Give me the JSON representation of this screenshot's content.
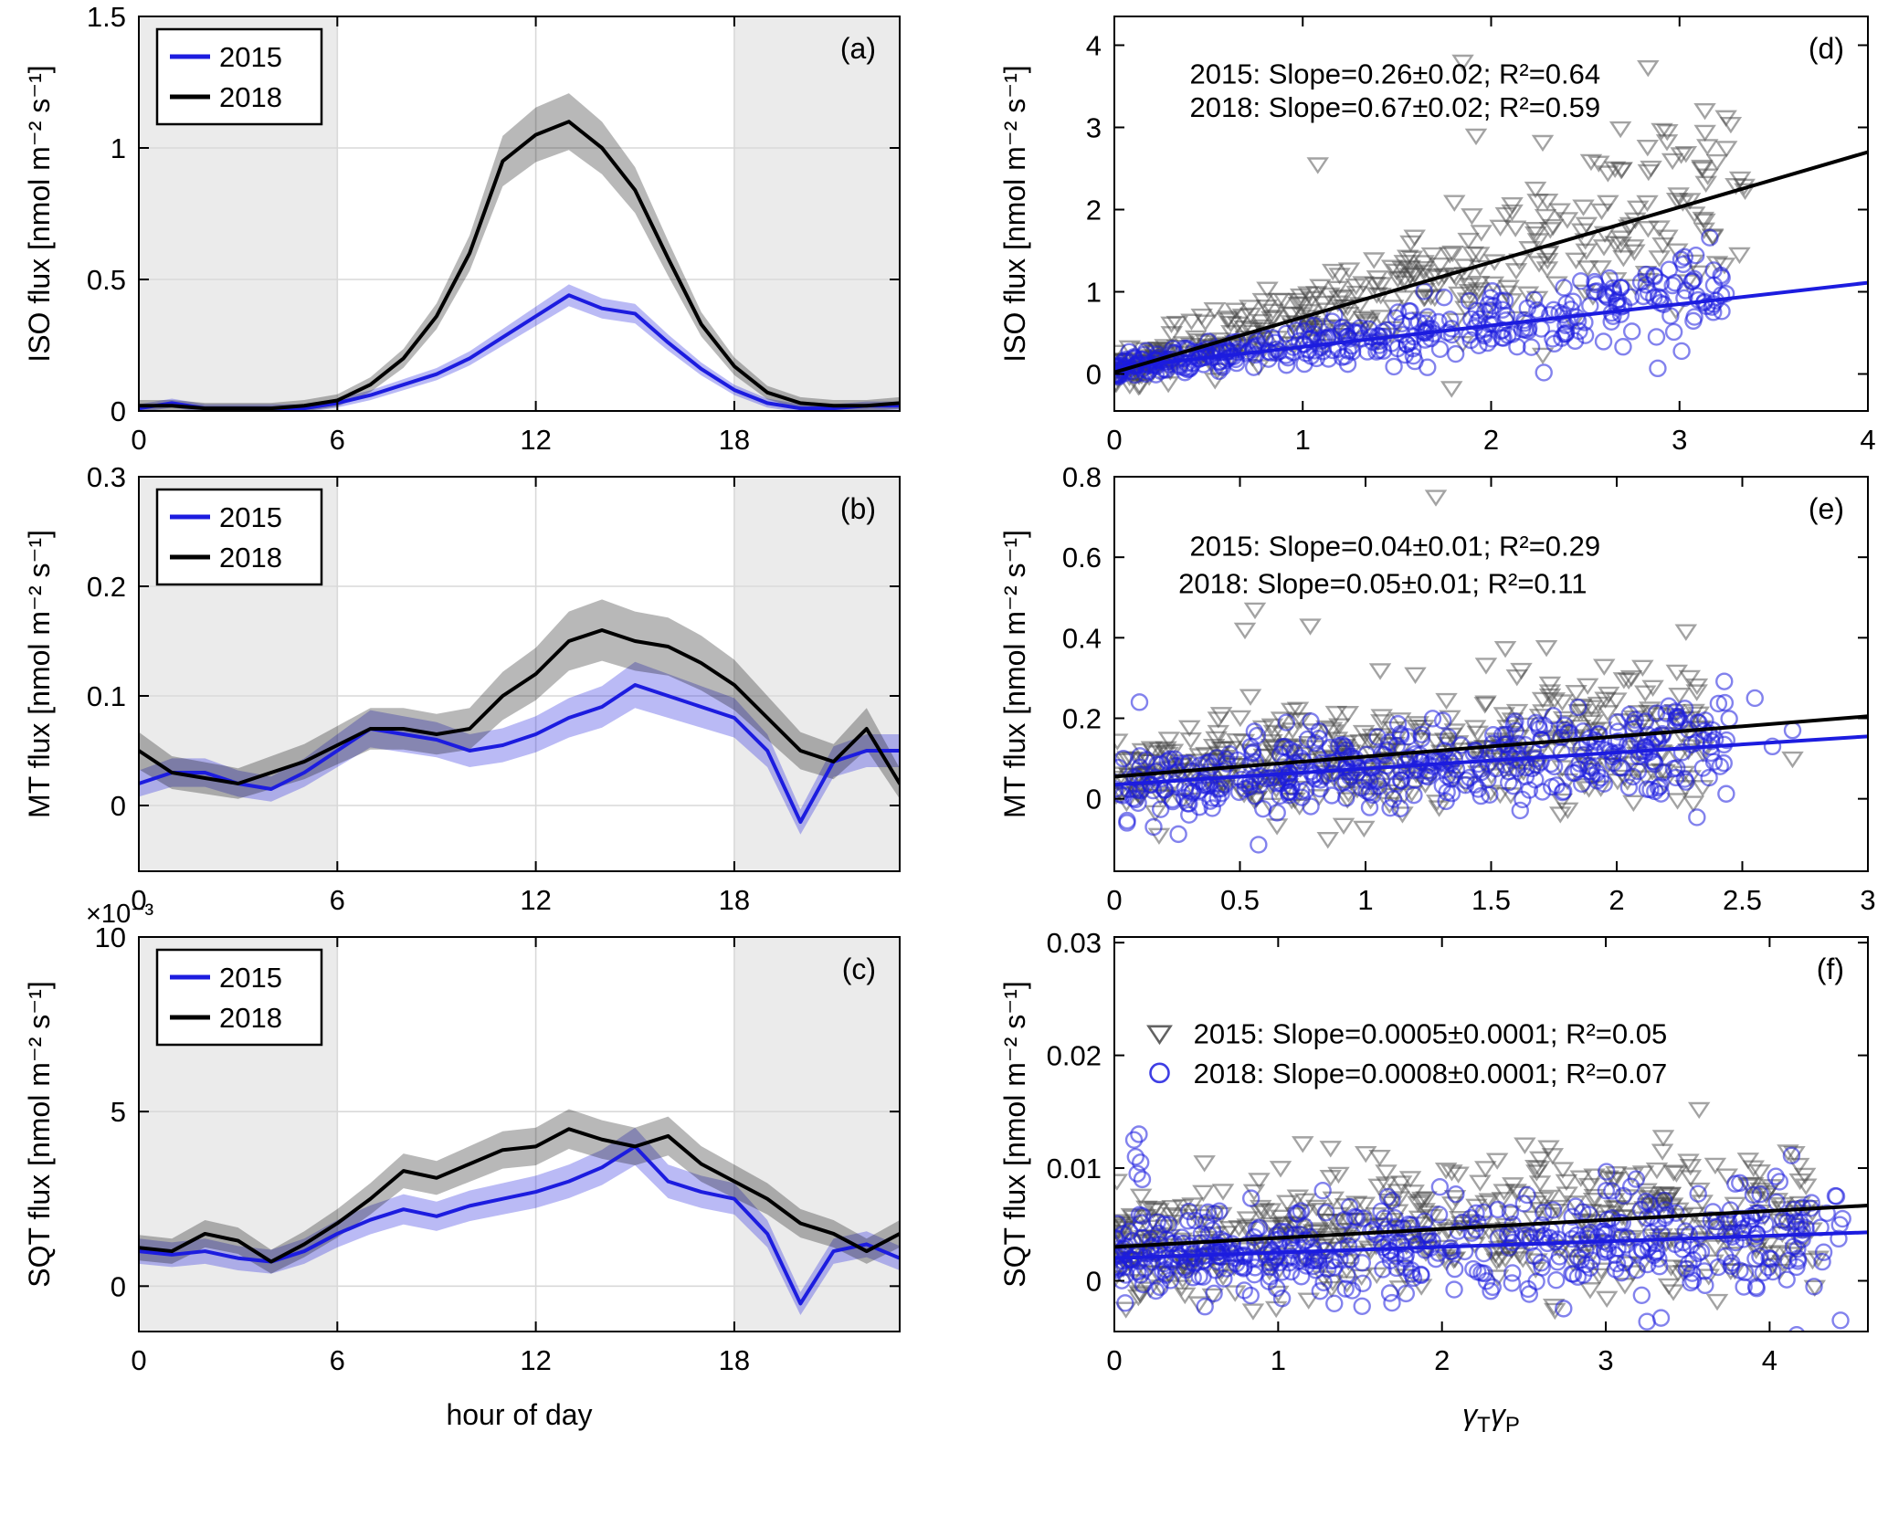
{
  "style": {
    "blue": "#1c1cdf",
    "black": "#000000",
    "gray": "#474747",
    "night_fill": "#ebebeb",
    "grid": "#d9d9d9",
    "background": "#ffffff"
  },
  "chart_data": [
    {
      "id": "a",
      "type": "line",
      "panel_label": "(a)",
      "grid": true,
      "ylabel": "ISO flux [nmol m⁻² s⁻¹]",
      "xlabel": "",
      "xlim": [
        0,
        23
      ],
      "ylim": [
        0,
        1.5
      ],
      "xticks": [
        0,
        6,
        12,
        18
      ],
      "yticks": [
        0,
        0.5,
        1,
        1.5
      ],
      "night_shading": [
        [
          0,
          6
        ],
        [
          18,
          23
        ]
      ],
      "legend": {
        "items": [
          {
            "label": "2015",
            "color_key": "blue"
          },
          {
            "label": "2018",
            "color_key": "black"
          }
        ]
      },
      "hours": [
        0,
        1,
        2,
        3,
        4,
        5,
        6,
        7,
        8,
        9,
        10,
        11,
        12,
        13,
        14,
        15,
        16,
        17,
        18,
        19,
        20,
        21,
        22,
        23
      ],
      "series": [
        {
          "name": "2015",
          "color_key": "blue",
          "band_base": 0.015,
          "band_frac": 0.06,
          "values": [
            0.01,
            0.03,
            0.01,
            0.01,
            0.01,
            0.01,
            0.03,
            0.06,
            0.1,
            0.14,
            0.2,
            0.28,
            0.36,
            0.44,
            0.39,
            0.37,
            0.26,
            0.16,
            0.08,
            0.03,
            0.01,
            0.01,
            0.02,
            0.02
          ]
        },
        {
          "name": "2018",
          "color_key": "black",
          "band_base": 0.02,
          "band_frac": 0.08,
          "values": [
            0.02,
            0.02,
            0.01,
            0.01,
            0.01,
            0.02,
            0.04,
            0.1,
            0.2,
            0.36,
            0.6,
            0.95,
            1.05,
            1.1,
            1.0,
            0.84,
            0.58,
            0.33,
            0.17,
            0.07,
            0.03,
            0.02,
            0.02,
            0.03
          ]
        }
      ]
    },
    {
      "id": "b",
      "type": "line",
      "panel_label": "(b)",
      "grid": true,
      "ylabel": "MT flux [nmol m⁻² s⁻¹]",
      "xlabel": "",
      "xlim": [
        0,
        23
      ],
      "ylim": [
        -0.06,
        0.3
      ],
      "xticks": [
        0,
        6,
        12,
        18
      ],
      "yticks": [
        0,
        0.1,
        0.2,
        0.3
      ],
      "night_shading": [
        [
          0,
          6
        ],
        [
          18,
          23
        ]
      ],
      "legend": {
        "items": [
          {
            "label": "2015",
            "color_key": "blue"
          },
          {
            "label": "2018",
            "color_key": "black"
          }
        ]
      },
      "hours": [
        0,
        1,
        2,
        3,
        4,
        5,
        6,
        7,
        8,
        9,
        10,
        11,
        12,
        13,
        14,
        15,
        16,
        17,
        18,
        19,
        20,
        21,
        22,
        23
      ],
      "series": [
        {
          "name": "2015",
          "color_key": "blue",
          "band_base": 0.01,
          "band_frac": 0.1,
          "values": [
            0.02,
            0.03,
            0.03,
            0.02,
            0.015,
            0.03,
            0.05,
            0.07,
            0.065,
            0.06,
            0.05,
            0.055,
            0.065,
            0.08,
            0.09,
            0.11,
            0.1,
            0.09,
            0.08,
            0.05,
            -0.015,
            0.04,
            0.05,
            0.05
          ]
        },
        {
          "name": "2018",
          "color_key": "black",
          "band_base": 0.012,
          "band_frac": 0.1,
          "values": [
            0.05,
            0.03,
            0.025,
            0.02,
            0.03,
            0.04,
            0.055,
            0.07,
            0.07,
            0.065,
            0.07,
            0.1,
            0.12,
            0.15,
            0.16,
            0.15,
            0.145,
            0.13,
            0.11,
            0.08,
            0.05,
            0.04,
            0.07,
            0.02
          ]
        }
      ]
    },
    {
      "id": "c",
      "type": "line",
      "panel_label": "(c)",
      "grid": true,
      "ylabel": "SQT flux [nmol m⁻² s⁻¹]",
      "xlabel": "hour of day",
      "y_multiplier": "×10⁻³",
      "xlim": [
        0,
        23
      ],
      "ylim": [
        -1.3,
        10
      ],
      "xticks": [
        0,
        6,
        12,
        18
      ],
      "yticks": [
        0,
        5,
        10
      ],
      "night_shading": [
        [
          0,
          6
        ],
        [
          18,
          23
        ]
      ],
      "legend": {
        "items": [
          {
            "label": "2015",
            "color_key": "blue"
          },
          {
            "label": "2018",
            "color_key": "black"
          }
        ]
      },
      "hours": [
        0,
        1,
        2,
        3,
        4,
        5,
        6,
        7,
        8,
        9,
        10,
        11,
        12,
        13,
        14,
        15,
        16,
        17,
        18,
        19,
        20,
        21,
        22,
        23
      ],
      "series": [
        {
          "name": "2015",
          "color_key": "blue",
          "band_base": 0.3,
          "band_frac": 0.06,
          "values": [
            1.0,
            0.9,
            1.0,
            0.8,
            0.7,
            1.0,
            1.5,
            1.9,
            2.2,
            2.0,
            2.3,
            2.5,
            2.7,
            3.0,
            3.4,
            4.0,
            3.0,
            2.7,
            2.5,
            1.5,
            -0.5,
            1.0,
            1.2,
            0.8
          ]
        },
        {
          "name": "2018",
          "color_key": "black",
          "band_base": 0.3,
          "band_frac": 0.06,
          "values": [
            1.1,
            1.0,
            1.5,
            1.3,
            0.7,
            1.2,
            1.8,
            2.5,
            3.3,
            3.1,
            3.5,
            3.9,
            4.0,
            4.5,
            4.2,
            4.0,
            4.3,
            3.5,
            3.0,
            2.5,
            1.8,
            1.5,
            1.0,
            1.5
          ]
        }
      ]
    },
    {
      "id": "d",
      "type": "scatter",
      "panel_label": "(d)",
      "grid": false,
      "ylabel": "ISO flux [nmol m⁻² s⁻¹]",
      "xlabel": "",
      "xlim": [
        0,
        4
      ],
      "ylim": [
        -0.45,
        4.35
      ],
      "xticks": [
        0,
        1,
        2,
        3,
        4
      ],
      "yticks": [
        0,
        1,
        2,
        3,
        4
      ],
      "annotations": [
        {
          "text": "2015: Slope=0.26±0.02; R²=0.64",
          "color_key": "blue",
          "fx": 0.1,
          "fy": 0.17
        },
        {
          "text": "2018: Slope=0.67±0.02; R²=0.59",
          "color_key": "black",
          "fx": 0.1,
          "fy": 0.255
        }
      ],
      "series": [
        {
          "name": "2018",
          "marker": "triangle",
          "color_key": "gray",
          "line_color_key": "black",
          "slope": 0.67,
          "intercept": 0.02,
          "r2": 0.59,
          "n": 380,
          "seed": 11,
          "x_max": 3.35,
          "x_pow": 1.35,
          "noise": [
            0.1,
            0.15
          ],
          "line_x": [
            0,
            4
          ],
          "extra_points": [
            [
              1.85,
              3.8
            ],
            [
              1.08,
              2.55
            ],
            [
              1.92,
              2.9
            ],
            [
              2.62,
              2.45
            ],
            [
              3.12,
              2.5
            ],
            [
              3.2,
              1.35
            ],
            [
              2.98,
              0.78
            ]
          ]
        },
        {
          "name": "2015",
          "marker": "circle",
          "color_key": "blue",
          "line_color_key": "blue",
          "slope": 0.26,
          "intercept": 0.07,
          "r2": 0.64,
          "n": 380,
          "seed": 23,
          "x_max": 3.25,
          "x_pow": 1.25,
          "noise": [
            0.06,
            0.07
          ],
          "line_x": [
            0,
            4
          ],
          "extra_points": [
            [
              2.55,
              1.0
            ],
            [
              2.62,
              0.93
            ],
            [
              2.5,
              0.47
            ],
            [
              3.1,
              0.9
            ],
            [
              3.18,
              0.85
            ]
          ]
        }
      ]
    },
    {
      "id": "e",
      "type": "scatter",
      "panel_label": "(e)",
      "grid": false,
      "ylabel": "MT flux [nmol m⁻² s⁻¹]",
      "xlabel": "",
      "xlim": [
        0,
        3
      ],
      "ylim": [
        -0.18,
        0.8
      ],
      "xticks": [
        0,
        0.5,
        1,
        1.5,
        2,
        2.5,
        3
      ],
      "yticks": [
        0,
        0.2,
        0.4,
        0.6,
        0.8
      ],
      "annotations": [
        {
          "text": "2015: Slope=0.04±0.01; R²=0.29",
          "color_key": "blue",
          "fx": 0.1,
          "fy": 0.2
        },
        {
          "text": "2018: Slope=0.05±0.01; R²=0.11",
          "color_key": "black",
          "fx": 0.085,
          "fy": 0.295
        }
      ],
      "series": [
        {
          "name": "2018",
          "marker": "triangle",
          "color_key": "gray",
          "line_color_key": "black",
          "slope": 0.05,
          "intercept": 0.055,
          "r2": 0.11,
          "n": 430,
          "seed": 31,
          "x_max": 2.35,
          "x_pow": 1.05,
          "noise": [
            0.05,
            0.022
          ],
          "line_x": [
            0,
            3
          ],
          "extra_points": [
            [
              1.28,
              0.75
            ],
            [
              0.56,
              0.47
            ],
            [
              0.78,
              0.43
            ],
            [
              0.52,
              0.42
            ],
            [
              0.85,
              -0.1
            ],
            [
              1.95,
              0.33
            ],
            [
              1.62,
              0.32
            ],
            [
              2.7,
              0.1
            ]
          ]
        },
        {
          "name": "2015",
          "marker": "circle",
          "color_key": "blue",
          "line_color_key": "blue",
          "slope": 0.04,
          "intercept": 0.035,
          "r2": 0.29,
          "n": 430,
          "seed": 41,
          "x_max": 2.45,
          "x_pow": 1.0,
          "noise": [
            0.04,
            0.012
          ],
          "line_x": [
            0,
            3
          ],
          "extra_points": [
            [
              2.55,
              0.25
            ],
            [
              2.7,
              0.17
            ],
            [
              0.1,
              0.24
            ],
            [
              2.62,
              0.13
            ]
          ]
        }
      ]
    },
    {
      "id": "f",
      "type": "scatter",
      "panel_label": "(f)",
      "grid": false,
      "ylabel": "SQT flux [nmol m⁻² s⁻¹]",
      "xlabel_rich": [
        {
          "t": "γ",
          "italic": true,
          "dy": 0
        },
        {
          "t": "T",
          "small": true,
          "dy": 8
        },
        {
          "t": "γ",
          "italic": true,
          "dy": -8
        },
        {
          "t": "P",
          "small": true,
          "dy": 8
        }
      ],
      "xlim": [
        0,
        4.6
      ],
      "ylim": [
        -0.0045,
        0.0305
      ],
      "xticks": [
        0,
        1,
        2,
        3,
        4
      ],
      "yticks": [
        0,
        0.01,
        0.02,
        0.03
      ],
      "annotations": [
        {
          "text": "2015: Slope=0.0005±0.0001; R²=0.05",
          "color_key": "blue",
          "fx": 0.105,
          "fy": 0.27,
          "marker": "triangle",
          "marker_color_key": "gray",
          "marker_fx": 0.06
        },
        {
          "text": "2018: Slope=0.0008±0.0001; R²=0.07",
          "color_key": "black",
          "fx": 0.105,
          "fy": 0.37,
          "marker": "circle",
          "marker_color_key": "blue",
          "marker_fx": 0.06
        }
      ],
      "series": [
        {
          "name": "2018",
          "marker": "triangle",
          "color_key": "gray",
          "line_color_key": "black",
          "slope": 0.0008,
          "intercept": 0.003,
          "r2": 0.07,
          "n": 500,
          "seed": 51,
          "x_max": 4.3,
          "x_pow": 1.2,
          "noise": [
            0.0022,
            0.0003
          ],
          "line_x": [
            0,
            4.6
          ],
          "extra_points": [
            [
              1.15,
              0.0122
            ],
            [
              1.32,
              0.0118
            ],
            [
              0.55,
              0.0105
            ],
            [
              1.62,
              0.011
            ],
            [
              2.1,
              0.0095
            ],
            [
              2.9,
              0.0085
            ]
          ]
        },
        {
          "name": "2015",
          "marker": "circle",
          "color_key": "blue",
          "line_color_key": "blue",
          "slope": 0.0005,
          "intercept": 0.002,
          "r2": 0.05,
          "n": 500,
          "seed": 61,
          "x_max": 4.45,
          "x_pow": 1.25,
          "noise": [
            0.0016,
            0.0003
          ],
          "line_x": [
            0,
            4.6
          ],
          "extra_points": [
            [
              0.12,
              0.0125
            ],
            [
              0.15,
              0.013
            ],
            [
              0.13,
              0.011
            ],
            [
              0.16,
              0.0105
            ],
            [
              0.14,
              0.0095
            ],
            [
              0.17,
              0.009
            ],
            [
              4.35,
              0.006
            ],
            [
              4.2,
              0.0045
            ]
          ]
        }
      ]
    }
  ]
}
